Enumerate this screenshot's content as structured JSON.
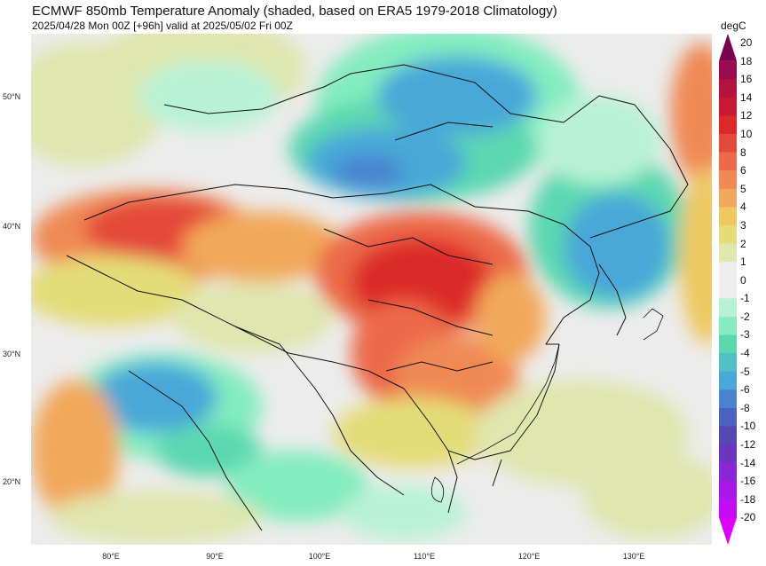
{
  "title": "ECMWF 850mb Temperature Anomaly (shaded, based on ERA5 1979-2018 Climatology)",
  "subtitle": "2025/04/28 Mon 00Z [+96h] valid at 2025/05/02 Fri 00Z",
  "map": {
    "lat_labels": [
      "50°N",
      "40°N",
      "30°N",
      "20°N"
    ],
    "lon_labels": [
      "80°E",
      "90°E",
      "100°E",
      "110°E",
      "120°E",
      "130°E"
    ]
  },
  "colorbar": {
    "unit": "degC",
    "ticks": [
      "20",
      "18",
      "16",
      "14",
      "12",
      "10",
      "8",
      "6",
      "5",
      "4",
      "3",
      "2",
      "1",
      "0",
      "-1",
      "-2",
      "-3",
      "-4",
      "-5",
      "-6",
      "-8",
      "-10",
      "-12",
      "-14",
      "-16",
      "-18",
      "-20"
    ],
    "colors": [
      "#7a0050",
      "#9b0a4e",
      "#b4123f",
      "#c81a33",
      "#dc2a2a",
      "#e44a3a",
      "#ec6a4a",
      "#f08a54",
      "#f2a85c",
      "#eec860",
      "#e4dc78",
      "#dfe6ae",
      "#eeeeee",
      "#eeeeee",
      "#b8f2d6",
      "#84ecc0",
      "#5cd8b0",
      "#52c0c6",
      "#4aa8d8",
      "#4a84d0",
      "#4a62c0",
      "#5648b4",
      "#6a36c0",
      "#8a26d8",
      "#a818e8",
      "#c40cf4",
      "#de00ff"
    ]
  }
}
